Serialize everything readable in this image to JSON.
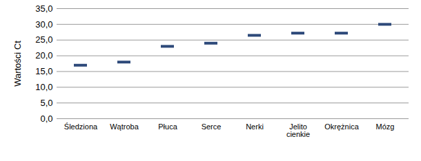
{
  "chart_data": {
    "type": "scatter",
    "marker": "dash",
    "ylabel": "Wartości Ct",
    "categories": [
      "Śledziona",
      "Wątroba",
      "Płuca",
      "Serce",
      "Nerki",
      "Jelito cienkie",
      "Okrężnica",
      "Mózg"
    ],
    "values": [
      17.0,
      18.0,
      23.0,
      24.0,
      26.5,
      27.2,
      27.2,
      30.0
    ],
    "color": "#2e4a7a",
    "ylim": [
      0,
      35
    ],
    "yticks": [
      {
        "value": 0,
        "label": "0,0"
      },
      {
        "value": 5,
        "label": "5,0"
      },
      {
        "value": 10,
        "label": "10,0"
      },
      {
        "value": 15,
        "label": "15,0"
      },
      {
        "value": 20,
        "label": "20,0"
      },
      {
        "value": 25,
        "label": "25,0"
      },
      {
        "value": 30,
        "label": "30,0"
      },
      {
        "value": 35,
        "label": "35,0"
      }
    ],
    "grid": true
  }
}
